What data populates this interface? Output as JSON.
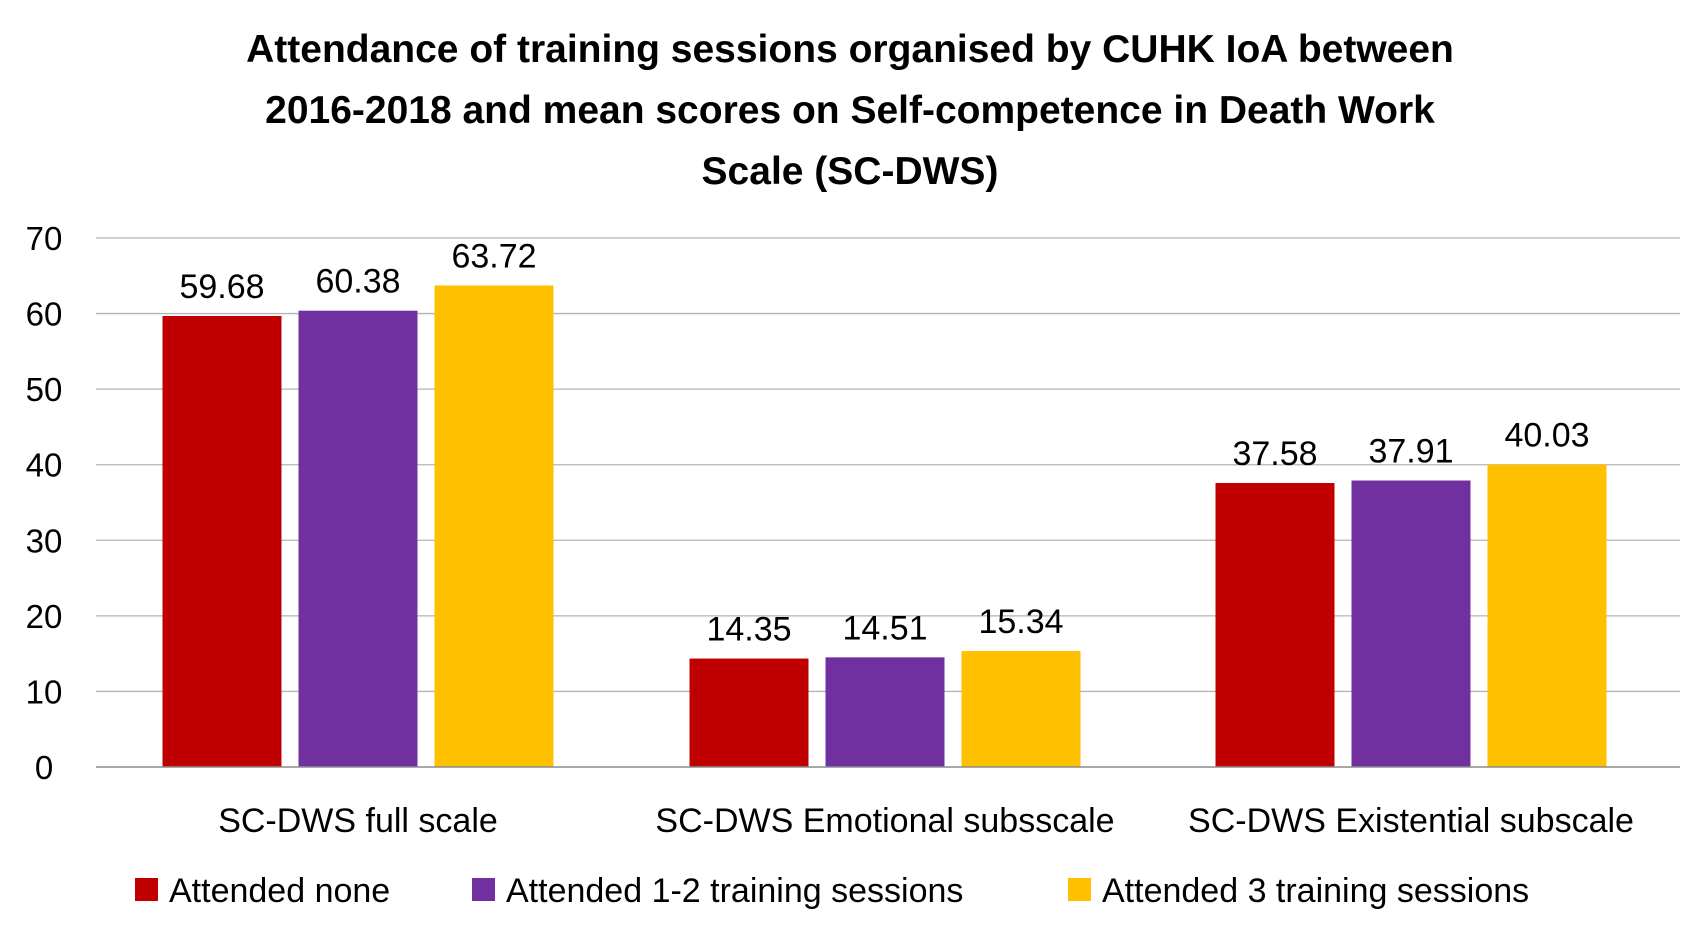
{
  "chart_data": {
    "type": "bar",
    "title_lines": [
      "Attendance of training sessions organised by CUHK IoA between",
      "2016-2018 and mean scores on Self-competence in Death Work",
      "Scale (SC-DWS)"
    ],
    "categories": [
      "SC-DWS full scale",
      "SC-DWS Emotional subsscale",
      "SC-DWS Existential subscale"
    ],
    "series": [
      {
        "name": "Attended none",
        "color": "#c00000",
        "values": [
          59.68,
          14.35,
          37.58
        ],
        "labels": [
          "59.68",
          "14.35",
          "37.58"
        ]
      },
      {
        "name": "Attended 1-2 training sessions",
        "color": "#7030a0",
        "values": [
          60.38,
          14.51,
          37.91
        ],
        "labels": [
          "60.38",
          "14.51",
          "37.91"
        ]
      },
      {
        "name": "Attended 3 training sessions",
        "color": "#ffc000",
        "values": [
          63.72,
          15.34,
          40.03
        ],
        "labels": [
          "63.72",
          "15.34",
          "40.03"
        ]
      }
    ],
    "ylim": [
      0,
      70
    ],
    "yticks": [
      "0",
      "10",
      "20",
      "30",
      "40",
      "50",
      "60",
      "70"
    ],
    "ytick_values": [
      0,
      10,
      20,
      30,
      40,
      50,
      60,
      70
    ],
    "grid": true,
    "legend_position": "bottom"
  }
}
